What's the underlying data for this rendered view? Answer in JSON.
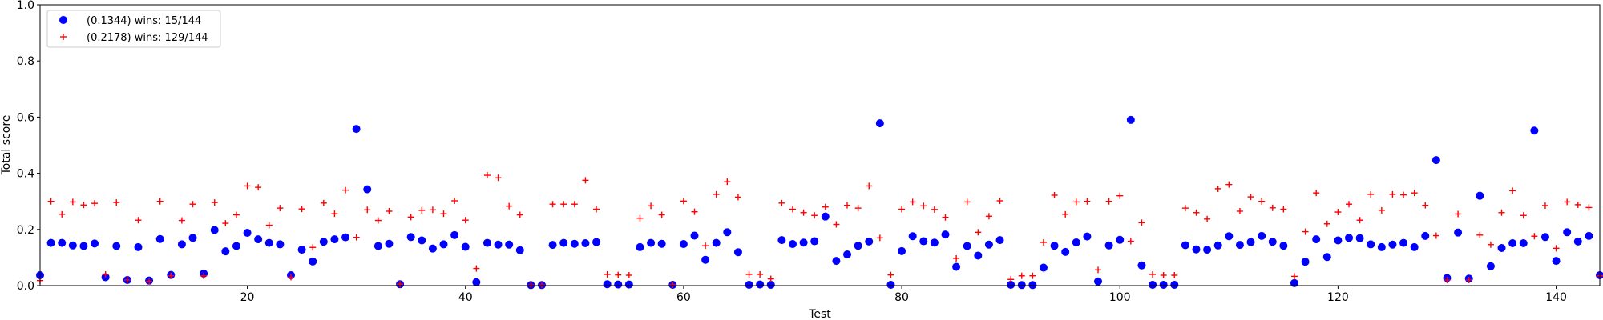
{
  "chart_data": {
    "type": "scatter",
    "xlabel": "Test",
    "ylabel": "Total score",
    "xlim": [
      1,
      144
    ],
    "ylim": [
      0,
      1.0
    ],
    "x_ticks": [
      20,
      40,
      60,
      80,
      100,
      120,
      140
    ],
    "x_tick_labels": [
      "20",
      "40",
      "60",
      "80",
      "100",
      "120",
      "140"
    ],
    "y_ticks": [
      0.0,
      0.2,
      0.4,
      0.6,
      0.8,
      1.0
    ],
    "y_tick_labels": [
      "0.0",
      "0.2",
      "0.4",
      "0.6",
      "0.8",
      "1.0"
    ],
    "grid": false,
    "legend_position": "upper-left",
    "series": [
      {
        "name": "(0.1344) wins: 15/144",
        "marker": "circle",
        "color": "#0000ff",
        "values": [
          0.037,
          0.152,
          0.152,
          0.143,
          0.141,
          0.15,
          0.03,
          0.141,
          0.02,
          0.137,
          0.018,
          0.166,
          0.038,
          0.147,
          0.17,
          0.043,
          0.198,
          0.122,
          0.141,
          0.188,
          0.165,
          0.152,
          0.147,
          0.037,
          0.128,
          0.086,
          0.156,
          0.165,
          0.172,
          0.558,
          0.343,
          0.141,
          0.149,
          0.005,
          0.173,
          0.161,
          0.132,
          0.147,
          0.18,
          0.138,
          0.012,
          0.152,
          0.146,
          0.146,
          0.126,
          0.002,
          0.002,
          0.145,
          0.152,
          0.149,
          0.151,
          0.155,
          0.005,
          0.004,
          0.004,
          0.137,
          0.152,
          0.149,
          0.003,
          0.148,
          0.178,
          0.092,
          0.152,
          0.19,
          0.119,
          0.003,
          0.004,
          0.003,
          0.162,
          0.148,
          0.153,
          0.158,
          0.246,
          0.088,
          0.111,
          0.142,
          0.157,
          0.578,
          0.003,
          0.123,
          0.176,
          0.158,
          0.153,
          0.182,
          0.067,
          0.141,
          0.107,
          0.146,
          0.162,
          0.003,
          0.002,
          0.002,
          0.064,
          0.142,
          0.12,
          0.154,
          0.175,
          0.015,
          0.143,
          0.163,
          0.59,
          0.072,
          0.003,
          0.003,
          0.003,
          0.144,
          0.129,
          0.128,
          0.143,
          0.176,
          0.145,
          0.155,
          0.177,
          0.156,
          0.142,
          0.009,
          0.085,
          0.165,
          0.102,
          0.161,
          0.17,
          0.169,
          0.147,
          0.137,
          0.146,
          0.152,
          0.137,
          0.177,
          0.447,
          0.027,
          0.189,
          0.025,
          0.32,
          0.069,
          0.134,
          0.151,
          0.151,
          0.552,
          0.173,
          0.088,
          0.19,
          0.157,
          0.177,
          0.037
        ]
      },
      {
        "name": "(0.2178) wins: 129/144",
        "marker": "plus",
        "color": "#ff0000",
        "values": [
          0.018,
          0.3,
          0.254,
          0.298,
          0.287,
          0.293,
          0.04,
          0.296,
          0.02,
          0.233,
          0.015,
          0.3,
          0.035,
          0.232,
          0.29,
          0.035,
          0.296,
          0.222,
          0.252,
          0.355,
          0.35,
          0.215,
          0.276,
          0.03,
          0.273,
          0.136,
          0.294,
          0.256,
          0.34,
          0.172,
          0.27,
          0.232,
          0.265,
          0.005,
          0.244,
          0.268,
          0.27,
          0.256,
          0.302,
          0.233,
          0.061,
          0.393,
          0.384,
          0.283,
          0.252,
          0.002,
          0.002,
          0.29,
          0.29,
          0.29,
          0.375,
          0.272,
          0.04,
          0.038,
          0.037,
          0.24,
          0.284,
          0.252,
          0.003,
          0.301,
          0.263,
          0.142,
          0.325,
          0.37,
          0.315,
          0.04,
          0.04,
          0.024,
          0.294,
          0.272,
          0.26,
          0.25,
          0.28,
          0.218,
          0.286,
          0.276,
          0.355,
          0.17,
          0.038,
          0.272,
          0.298,
          0.284,
          0.271,
          0.243,
          0.097,
          0.298,
          0.19,
          0.247,
          0.302,
          0.022,
          0.035,
          0.035,
          0.154,
          0.322,
          0.254,
          0.298,
          0.3,
          0.056,
          0.3,
          0.32,
          0.158,
          0.224,
          0.04,
          0.037,
          0.037,
          0.276,
          0.26,
          0.237,
          0.345,
          0.36,
          0.265,
          0.316,
          0.3,
          0.277,
          0.272,
          0.033,
          0.192,
          0.33,
          0.22,
          0.262,
          0.29,
          0.233,
          0.325,
          0.268,
          0.325,
          0.323,
          0.33,
          0.286,
          0.178,
          0.02,
          0.255,
          0.02,
          0.18,
          0.146,
          0.26,
          0.338,
          0.25,
          0.176,
          0.285,
          0.133,
          0.298,
          0.288,
          0.278,
          0.035
        ]
      }
    ]
  }
}
